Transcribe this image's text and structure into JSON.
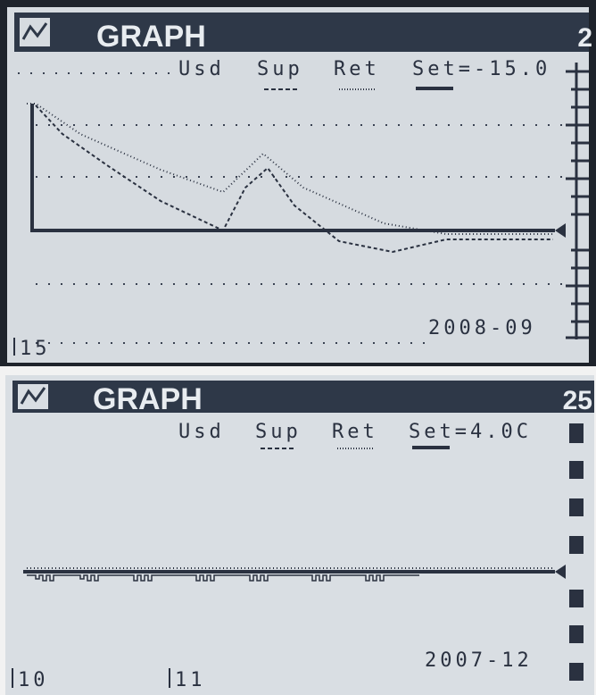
{
  "panels": [
    {
      "title": "GRAPH",
      "page": "2",
      "legend": [
        "Usd",
        "Sup",
        "Ret",
        "Set=-15.0"
      ],
      "date": "2008-09",
      "markers": [
        "15"
      ]
    },
    {
      "title": "GRAPH",
      "page": "25",
      "legend": [
        "Usd",
        "Sup",
        "Ret",
        "Set=4.0C"
      ],
      "date": "2007-12",
      "markers": [
        "10",
        "11"
      ]
    }
  ]
}
